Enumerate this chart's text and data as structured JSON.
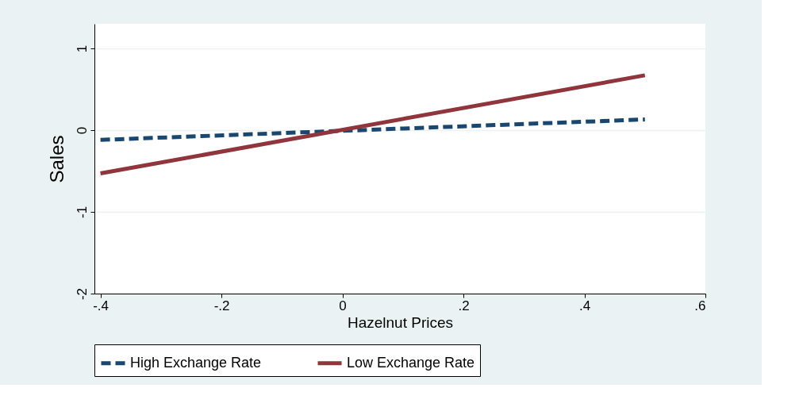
{
  "chart_data": {
    "type": "line",
    "xlabel": "Hazelnut Prices",
    "ylabel": "Sales",
    "x": [
      -0.4,
      0.5
    ],
    "series": [
      {
        "name": "High Exchange Rate",
        "color": "#1a476f",
        "line_style": "dashed",
        "values": [
          -0.12,
          0.13
        ]
      },
      {
        "name": "Low Exchange Rate",
        "color": "#90353b",
        "line_style": "solid",
        "values": [
          -0.53,
          0.67
        ]
      }
    ],
    "xlim": [
      -0.41,
      0.6
    ],
    "ylim": [
      -2,
      1.3
    ],
    "xticks": [
      {
        "value": -0.4,
        "label": "-.4"
      },
      {
        "value": -0.2,
        "label": "-.2"
      },
      0,
      {
        "value": 0.2,
        "label": ".2"
      },
      {
        "value": 0.4,
        "label": ".4"
      },
      {
        "value": 0.6,
        "label": ".6"
      }
    ],
    "yticks": [
      -2,
      -1,
      0,
      1
    ],
    "grid": "y",
    "legend": "bottom",
    "marker": "none"
  }
}
